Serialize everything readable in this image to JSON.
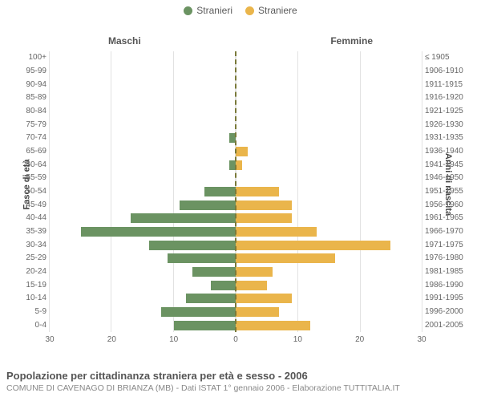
{
  "legend": {
    "male": {
      "label": "Stranieri",
      "color": "#6b9362"
    },
    "female": {
      "label": "Straniere",
      "color": "#eab54b"
    }
  },
  "columns": {
    "left": "Maschi",
    "right": "Femmine"
  },
  "yaxis": {
    "left": "Fasce di età",
    "right": "Anni di nascita"
  },
  "grid_color": "#e2e2e2",
  "center_line_color": "#7a7a3a",
  "background_color": "#ffffff",
  "bar_male_color": "#6b9362",
  "bar_female_color": "#eab54b",
  "xmax": 30,
  "xticks": [
    0,
    10,
    20,
    30
  ],
  "rows": [
    {
      "age": "100+",
      "birth": "≤ 1905",
      "m": 0,
      "f": 0
    },
    {
      "age": "95-99",
      "birth": "1906-1910",
      "m": 0,
      "f": 0
    },
    {
      "age": "90-94",
      "birth": "1911-1915",
      "m": 0,
      "f": 0
    },
    {
      "age": "85-89",
      "birth": "1916-1920",
      "m": 0,
      "f": 0
    },
    {
      "age": "80-84",
      "birth": "1921-1925",
      "m": 0,
      "f": 0
    },
    {
      "age": "75-79",
      "birth": "1926-1930",
      "m": 0,
      "f": 0
    },
    {
      "age": "70-74",
      "birth": "1931-1935",
      "m": 1,
      "f": 0
    },
    {
      "age": "65-69",
      "birth": "1936-1940",
      "m": 0,
      "f": 2
    },
    {
      "age": "60-64",
      "birth": "1941-1945",
      "m": 1,
      "f": 1
    },
    {
      "age": "55-59",
      "birth": "1946-1950",
      "m": 0,
      "f": 0
    },
    {
      "age": "50-54",
      "birth": "1951-1955",
      "m": 5,
      "f": 7
    },
    {
      "age": "45-49",
      "birth": "1956-1960",
      "m": 9,
      "f": 9
    },
    {
      "age": "40-44",
      "birth": "1961-1965",
      "m": 17,
      "f": 9
    },
    {
      "age": "35-39",
      "birth": "1966-1970",
      "m": 25,
      "f": 13
    },
    {
      "age": "30-34",
      "birth": "1971-1975",
      "m": 14,
      "f": 25
    },
    {
      "age": "25-29",
      "birth": "1976-1980",
      "m": 11,
      "f": 16
    },
    {
      "age": "20-24",
      "birth": "1981-1985",
      "m": 7,
      "f": 6
    },
    {
      "age": "15-19",
      "birth": "1986-1990",
      "m": 4,
      "f": 5
    },
    {
      "age": "10-14",
      "birth": "1991-1995",
      "m": 8,
      "f": 9
    },
    {
      "age": "5-9",
      "birth": "1996-2000",
      "m": 12,
      "f": 7
    },
    {
      "age": "0-4",
      "birth": "2001-2005",
      "m": 10,
      "f": 12
    }
  ],
  "footer": {
    "title": "Popolazione per cittadinanza straniera per età e sesso - 2006",
    "subtitle": "COMUNE DI CAVENAGO DI BRIANZA (MB) - Dati ISTAT 1° gennaio 2006 - Elaborazione TUTTITALIA.IT"
  }
}
